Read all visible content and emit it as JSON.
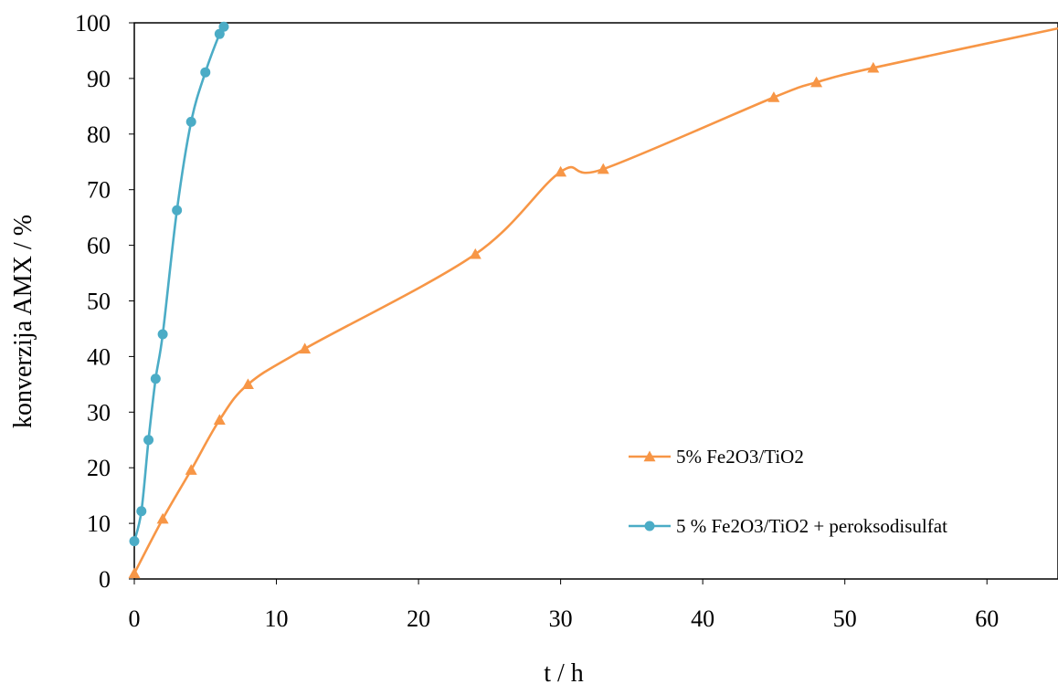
{
  "chart_data": {
    "type": "line",
    "xlabel": "t / h",
    "ylabel": "konverzija AMX / %",
    "xlim": [
      0,
      65
    ],
    "ylim": [
      0,
      100
    ],
    "xticks": [
      0,
      10,
      20,
      30,
      40,
      50,
      60
    ],
    "yticks": [
      0,
      10,
      20,
      30,
      40,
      50,
      60,
      70,
      80,
      90,
      100
    ],
    "grid": false,
    "legend_position": "lower-right",
    "series": [
      {
        "name": "5% Fe2O3/TiO2",
        "color": "#F79646",
        "marker": "triangle",
        "x": [
          0,
          2,
          4,
          6,
          8,
          12,
          24,
          30,
          33,
          45,
          48,
          52,
          65
        ],
        "y": [
          1,
          10.8,
          19.6,
          28.6,
          35,
          41.4,
          58.4,
          73.2,
          73.7,
          86.6,
          89.3,
          91.9,
          99
        ]
      },
      {
        "name": "5 % Fe2O3/TiO2 + peroksodisulfat",
        "color": "#4BACC6",
        "marker": "circle",
        "x": [
          0,
          0.5,
          1,
          1.5,
          2,
          3,
          4,
          5,
          6,
          6.3
        ],
        "y": [
          6.8,
          12.2,
          25,
          36,
          44,
          66.3,
          82.2,
          91.1,
          98,
          99.3
        ]
      }
    ]
  }
}
